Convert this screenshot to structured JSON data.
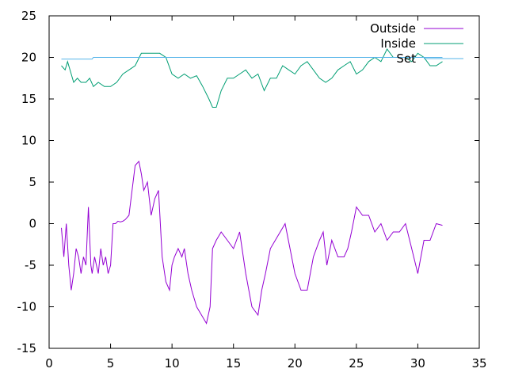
{
  "chart_data": {
    "type": "line",
    "title": "",
    "xlabel": "",
    "ylabel": "",
    "xlim": [
      0,
      35
    ],
    "ylim": [
      -15,
      25
    ],
    "xticks": [
      0,
      5,
      10,
      15,
      20,
      25,
      30,
      35
    ],
    "yticks": [
      -15,
      -10,
      -5,
      0,
      5,
      10,
      15,
      20,
      25
    ],
    "grid": false,
    "legend": "top-right",
    "series": [
      {
        "name": "Outside",
        "color": "#9400d3",
        "x": [
          1.0,
          1.2,
          1.4,
          1.6,
          1.8,
          2.0,
          2.2,
          2.4,
          2.6,
          2.8,
          3.0,
          3.2,
          3.4,
          3.5,
          3.7,
          4.0,
          4.2,
          4.4,
          4.6,
          4.8,
          5.0,
          5.2,
          5.4,
          5.6,
          5.8,
          6.0,
          6.2,
          6.5,
          7.0,
          7.3,
          7.5,
          7.7,
          8.0,
          8.3,
          8.6,
          8.9,
          9.2,
          9.5,
          9.8,
          10.0,
          10.2,
          10.5,
          10.8,
          11.0,
          11.3,
          11.6,
          12.0,
          12.4,
          12.8,
          13.1,
          13.3,
          13.6,
          14.0,
          14.5,
          15.0,
          15.5,
          16.0,
          16.5,
          17.0,
          17.3,
          17.6,
          18.0,
          18.4,
          18.8,
          19.2,
          19.6,
          20.0,
          20.5,
          21.0,
          21.5,
          22.0,
          22.3,
          22.6,
          23.0,
          23.5,
          24.0,
          24.3,
          24.6,
          25.0,
          25.5,
          26.0,
          26.5,
          27.0,
          27.5,
          28.0,
          28.5,
          29.0,
          29.5,
          30.0,
          30.5,
          31.0,
          31.5,
          32.0
        ],
        "values": [
          -0.5,
          -4,
          0,
          -5,
          -8,
          -6,
          -3,
          -4,
          -6,
          -4,
          -5,
          2,
          -5,
          -6,
          -4,
          -6,
          -3,
          -5,
          -4,
          -6,
          -5,
          0,
          0,
          0.3,
          0.2,
          0.3,
          0.5,
          1,
          7,
          7.5,
          6,
          4,
          5,
          1,
          3,
          4,
          -4,
          -7,
          -8,
          -5,
          -4,
          -3,
          -4,
          -3,
          -6,
          -8,
          -10,
          -11,
          -12,
          -10,
          -3,
          -2,
          -1,
          -2,
          -3,
          -1,
          -6,
          -10,
          -11,
          -8,
          -6,
          -3,
          -2,
          -1,
          0,
          -3,
          -6,
          -8,
          -8,
          -4,
          -2,
          -1,
          -5,
          -2,
          -4,
          -4,
          -3,
          -1,
          2,
          1,
          1,
          -1,
          0,
          -2,
          -1,
          -1,
          0,
          -3,
          -6,
          -2,
          -2,
          0,
          -0.2
        ]
      },
      {
        "name": "Inside",
        "color": "#009e73",
        "x": [
          1.0,
          1.3,
          1.5,
          1.8,
          2.0,
          2.3,
          2.6,
          3.0,
          3.3,
          3.6,
          4.0,
          4.5,
          5.0,
          5.5,
          6.0,
          6.5,
          7.0,
          7.5,
          8.0,
          8.5,
          9.0,
          9.5,
          10.0,
          10.5,
          11.0,
          11.5,
          12.0,
          12.5,
          13.0,
          13.3,
          13.6,
          14.0,
          14.5,
          15.0,
          15.5,
          16.0,
          16.5,
          17.0,
          17.5,
          18.0,
          18.5,
          19.0,
          19.5,
          20.0,
          20.5,
          21.0,
          21.5,
          22.0,
          22.5,
          23.0,
          23.5,
          24.0,
          24.5,
          25.0,
          25.5,
          26.0,
          26.5,
          27.0,
          27.5,
          28.0,
          28.5,
          29.0,
          29.5,
          30.0,
          30.5,
          31.0,
          31.5,
          32.0
        ],
        "values": [
          19,
          18.5,
          19.5,
          18,
          17,
          17.5,
          17,
          17,
          17.5,
          16.5,
          17,
          16.5,
          16.5,
          17,
          18,
          18.5,
          19,
          20.5,
          20.5,
          20.5,
          20.5,
          20,
          18,
          17.5,
          18,
          17.5,
          17.8,
          16.5,
          15,
          14,
          14,
          16,
          17.5,
          17.5,
          18,
          18.5,
          17.5,
          18,
          16,
          17.5,
          17.5,
          19,
          18.5,
          18,
          19,
          19.5,
          18.5,
          17.5,
          17,
          17.5,
          18.5,
          19,
          19.5,
          18,
          18.5,
          19.5,
          20,
          19.5,
          21,
          20,
          20,
          20,
          19.5,
          20.5,
          20,
          19,
          19,
          19.5
        ]
      },
      {
        "name": "Set",
        "color": "#56b4e9",
        "x": [
          1.0,
          3.5,
          3.6,
          32.0
        ],
        "values": [
          19.8,
          19.8,
          20.0,
          20.0
        ]
      }
    ]
  }
}
